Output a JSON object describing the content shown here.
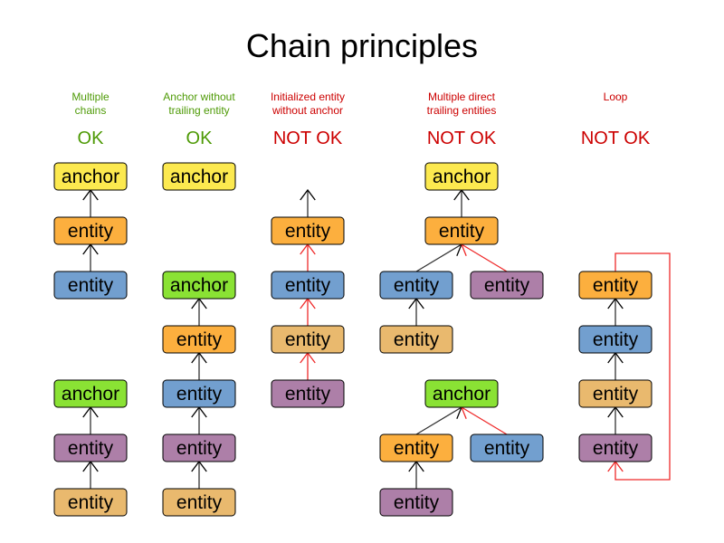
{
  "title": "Chain principles",
  "colors": {
    "ok": "#4e9a06",
    "notok": "#cc0000",
    "yellow": "#fce94f",
    "orange": "#fcaf3e",
    "blue": "#729fcf",
    "purple": "#ad7fa8",
    "tan": "#e9b96e",
    "green": "#8ae234",
    "edge_black": "#000000",
    "edge_red": "#ef2929"
  },
  "columns": [
    {
      "heading": [
        "Multiple",
        "chains"
      ],
      "verdict": "OK",
      "status": "ok",
      "nodes": [
        {
          "label": "anchor",
          "color": "yellow"
        },
        {
          "label": "entity",
          "color": "orange"
        },
        {
          "label": "entity",
          "color": "blue"
        },
        {
          "label": "anchor",
          "color": "green"
        },
        {
          "label": "entity",
          "color": "purple"
        },
        {
          "label": "entity",
          "color": "tan"
        }
      ],
      "edges": [
        {
          "from": 1,
          "to": 0,
          "color": "edge_black"
        },
        {
          "from": 2,
          "to": 1,
          "color": "edge_black"
        },
        {
          "from": 4,
          "to": 3,
          "color": "edge_black"
        },
        {
          "from": 5,
          "to": 4,
          "color": "edge_black"
        }
      ]
    },
    {
      "heading": [
        "Anchor without",
        "trailing entity"
      ],
      "verdict": "OK",
      "status": "ok",
      "nodes": [
        {
          "label": "anchor",
          "color": "yellow"
        },
        {
          "label": "anchor",
          "color": "green"
        },
        {
          "label": "entity",
          "color": "orange"
        },
        {
          "label": "entity",
          "color": "blue"
        },
        {
          "label": "entity",
          "color": "purple"
        },
        {
          "label": "entity",
          "color": "tan"
        }
      ],
      "edges": [
        {
          "from": 2,
          "to": 1,
          "color": "edge_black"
        },
        {
          "from": 3,
          "to": 2,
          "color": "edge_black"
        },
        {
          "from": 4,
          "to": 3,
          "color": "edge_black"
        },
        {
          "from": 5,
          "to": 4,
          "color": "edge_black"
        }
      ]
    },
    {
      "heading": [
        "Initialized entity",
        "without anchor"
      ],
      "verdict": "NOT OK",
      "status": "notok",
      "nodes": [
        {
          "label": "entity",
          "color": "orange"
        },
        {
          "label": "entity",
          "color": "blue"
        },
        {
          "label": "entity",
          "color": "tan"
        },
        {
          "label": "entity",
          "color": "purple"
        }
      ],
      "edges": [
        {
          "from": 0,
          "to": null,
          "color": "edge_black"
        },
        {
          "from": 1,
          "to": 0,
          "color": "edge_red"
        },
        {
          "from": 2,
          "to": 1,
          "color": "edge_red"
        },
        {
          "from": 3,
          "to": 2,
          "color": "edge_red"
        }
      ]
    },
    {
      "heading": [
        "Multiple direct",
        "trailing entities"
      ],
      "verdict": "NOT OK",
      "status": "notok",
      "nodes": [
        {
          "label": "anchor",
          "color": "yellow"
        },
        {
          "label": "entity",
          "color": "orange"
        },
        {
          "label": "entity",
          "color": "blue"
        },
        {
          "label": "entity",
          "color": "purple"
        },
        {
          "label": "entity",
          "color": "tan"
        },
        {
          "label": "anchor",
          "color": "green"
        },
        {
          "label": "entity",
          "color": "orange"
        },
        {
          "label": "entity",
          "color": "blue"
        },
        {
          "label": "entity",
          "color": "purple"
        }
      ],
      "edges": [
        {
          "from": 1,
          "to": 0,
          "color": "edge_black"
        },
        {
          "from": 2,
          "to": 1,
          "color": "edge_black"
        },
        {
          "from": 3,
          "to": 1,
          "color": "edge_red"
        },
        {
          "from": 4,
          "to": 2,
          "color": "edge_black"
        },
        {
          "from": 6,
          "to": 5,
          "color": "edge_black"
        },
        {
          "from": 7,
          "to": 5,
          "color": "edge_red"
        },
        {
          "from": 8,
          "to": 6,
          "color": "edge_black"
        }
      ]
    },
    {
      "heading": [
        "Loop"
      ],
      "verdict": "NOT OK",
      "status": "notok",
      "nodes": [
        {
          "label": "entity",
          "color": "orange"
        },
        {
          "label": "entity",
          "color": "blue"
        },
        {
          "label": "entity",
          "color": "tan"
        },
        {
          "label": "entity",
          "color": "purple"
        }
      ],
      "edges": [
        {
          "from": 1,
          "to": 0,
          "color": "edge_black"
        },
        {
          "from": 2,
          "to": 1,
          "color": "edge_black"
        },
        {
          "from": 3,
          "to": 2,
          "color": "edge_black"
        },
        {
          "from": 0,
          "to": 3,
          "color": "edge_red",
          "loop": true
        }
      ]
    }
  ]
}
